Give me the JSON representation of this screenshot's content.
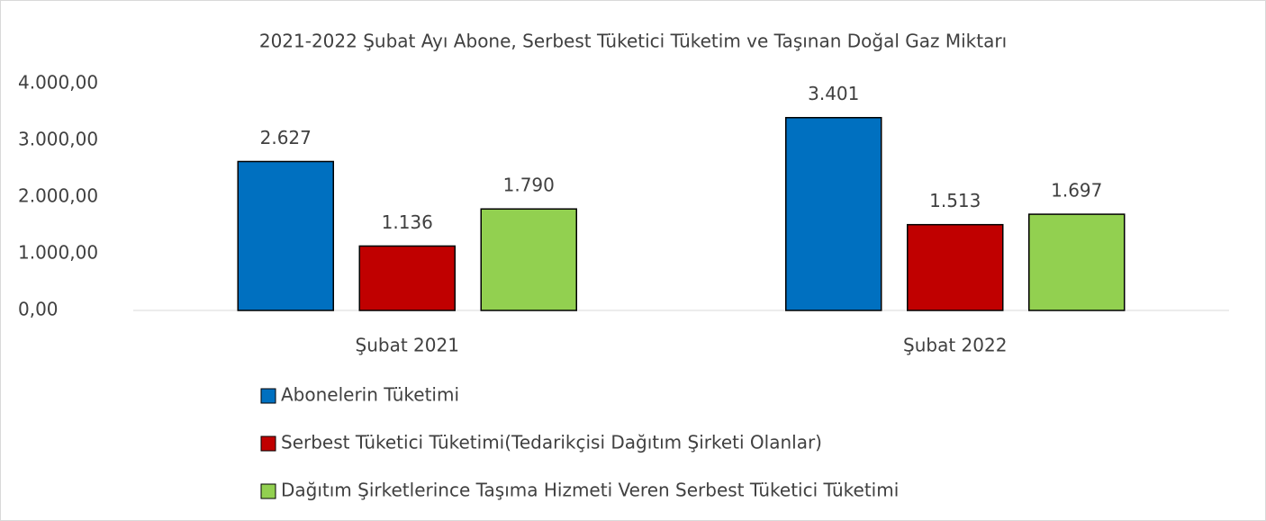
{
  "chart_data": {
    "type": "bar",
    "title": "2021-2022 Şubat Ayı Abone, Serbest Tüketici Tüketim ve Taşınan Doğal Gaz Miktarı",
    "categories": [
      "Şubat 2021",
      "Şubat 2022"
    ],
    "series": [
      {
        "name": "Abonelerin Tüketimi",
        "color": "#0070c0",
        "values": [
          2627,
          3401
        ],
        "value_labels": [
          "2.627",
          "3.401"
        ]
      },
      {
        "name": "Serbest Tüketici Tüketimi(Tedarikçisi Dağıtım Şirketi Olanlar)",
        "color": "#c00000",
        "values": [
          1136,
          1513
        ],
        "value_labels": [
          "1.136",
          "1.513"
        ]
      },
      {
        "name": "Dağıtım Şirketlerince Taşıma Hizmeti Veren Serbest Tüketici Tüketimi",
        "color": "#92d050",
        "values": [
          1790,
          1697
        ],
        "value_labels": [
          "1.790",
          "1.697"
        ]
      }
    ],
    "ylim": [
      0,
      4000
    ],
    "yticks": [
      {
        "value": 0,
        "label": "0,00"
      },
      {
        "value": 1000,
        "label": "1.000,00"
      },
      {
        "value": 2000,
        "label": "2.000,00"
      },
      {
        "value": 3000,
        "label": "3.000,00"
      },
      {
        "value": 4000,
        "label": "4.000,00"
      }
    ],
    "legend": "bottom"
  }
}
